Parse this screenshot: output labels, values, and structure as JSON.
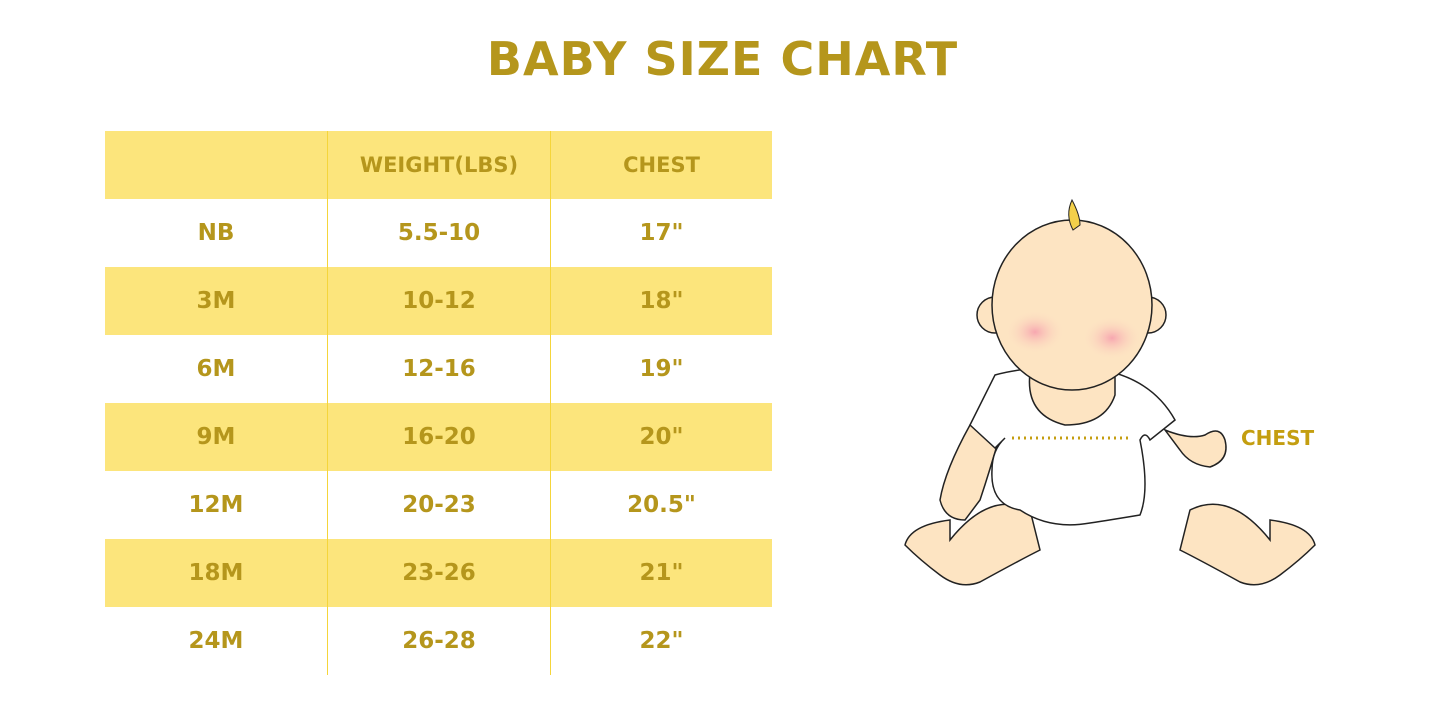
{
  "title": "BABY SIZE CHART",
  "table": {
    "headers": [
      "",
      "WEIGHT(LBS)",
      "CHEST"
    ],
    "rows": [
      [
        "NB",
        "5.5-10",
        "17\""
      ],
      [
        "3M",
        "10-12",
        "18\""
      ],
      [
        "6M",
        "12-16",
        "19\""
      ],
      [
        "9M",
        "16-20",
        "20\""
      ],
      [
        "12M",
        "20-23",
        "20.5\""
      ],
      [
        "18M",
        "23-26",
        "21\""
      ],
      [
        "24M",
        "26-28",
        "22\""
      ]
    ]
  },
  "illustration": {
    "icon": "baby-illustration",
    "chest_label": "CHEST"
  },
  "colors": {
    "text": "#b5961c",
    "band": "#fce57c",
    "divider": "#f5d53a"
  }
}
